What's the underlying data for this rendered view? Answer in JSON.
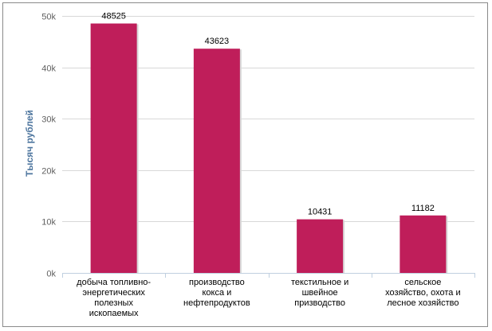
{
  "chart_data": {
    "type": "bar",
    "title": "",
    "xlabel": "",
    "ylabel": "Тысяч рублей",
    "ylim": [
      0,
      50000
    ],
    "y_ticks": [
      0,
      10000,
      20000,
      30000,
      40000,
      50000
    ],
    "y_tick_labels": [
      "0k",
      "10k",
      "20k",
      "30k",
      "40k",
      "50k"
    ],
    "grid": true,
    "legend": "none",
    "categories": [
      [
        "добыча топливно-",
        "энергетических",
        "полезных",
        "ископаемых"
      ],
      [
        "производство",
        "кокса и",
        "нефтепродуктов"
      ],
      [
        "текстильное и",
        "швейное",
        "призводство"
      ],
      [
        "сельское",
        "хозяйство, охота и",
        "лесное хозяйство"
      ]
    ],
    "values": [
      48525,
      43623,
      10431,
      11182
    ],
    "data_labels": [
      "48525",
      "43623",
      "10431",
      "11182"
    ],
    "colors": {
      "bar": "#bf1e5a",
      "bar_shadow": "#d8d8d8",
      "grid": "#d8d8d8",
      "axis": "#c0d0e0"
    }
  }
}
